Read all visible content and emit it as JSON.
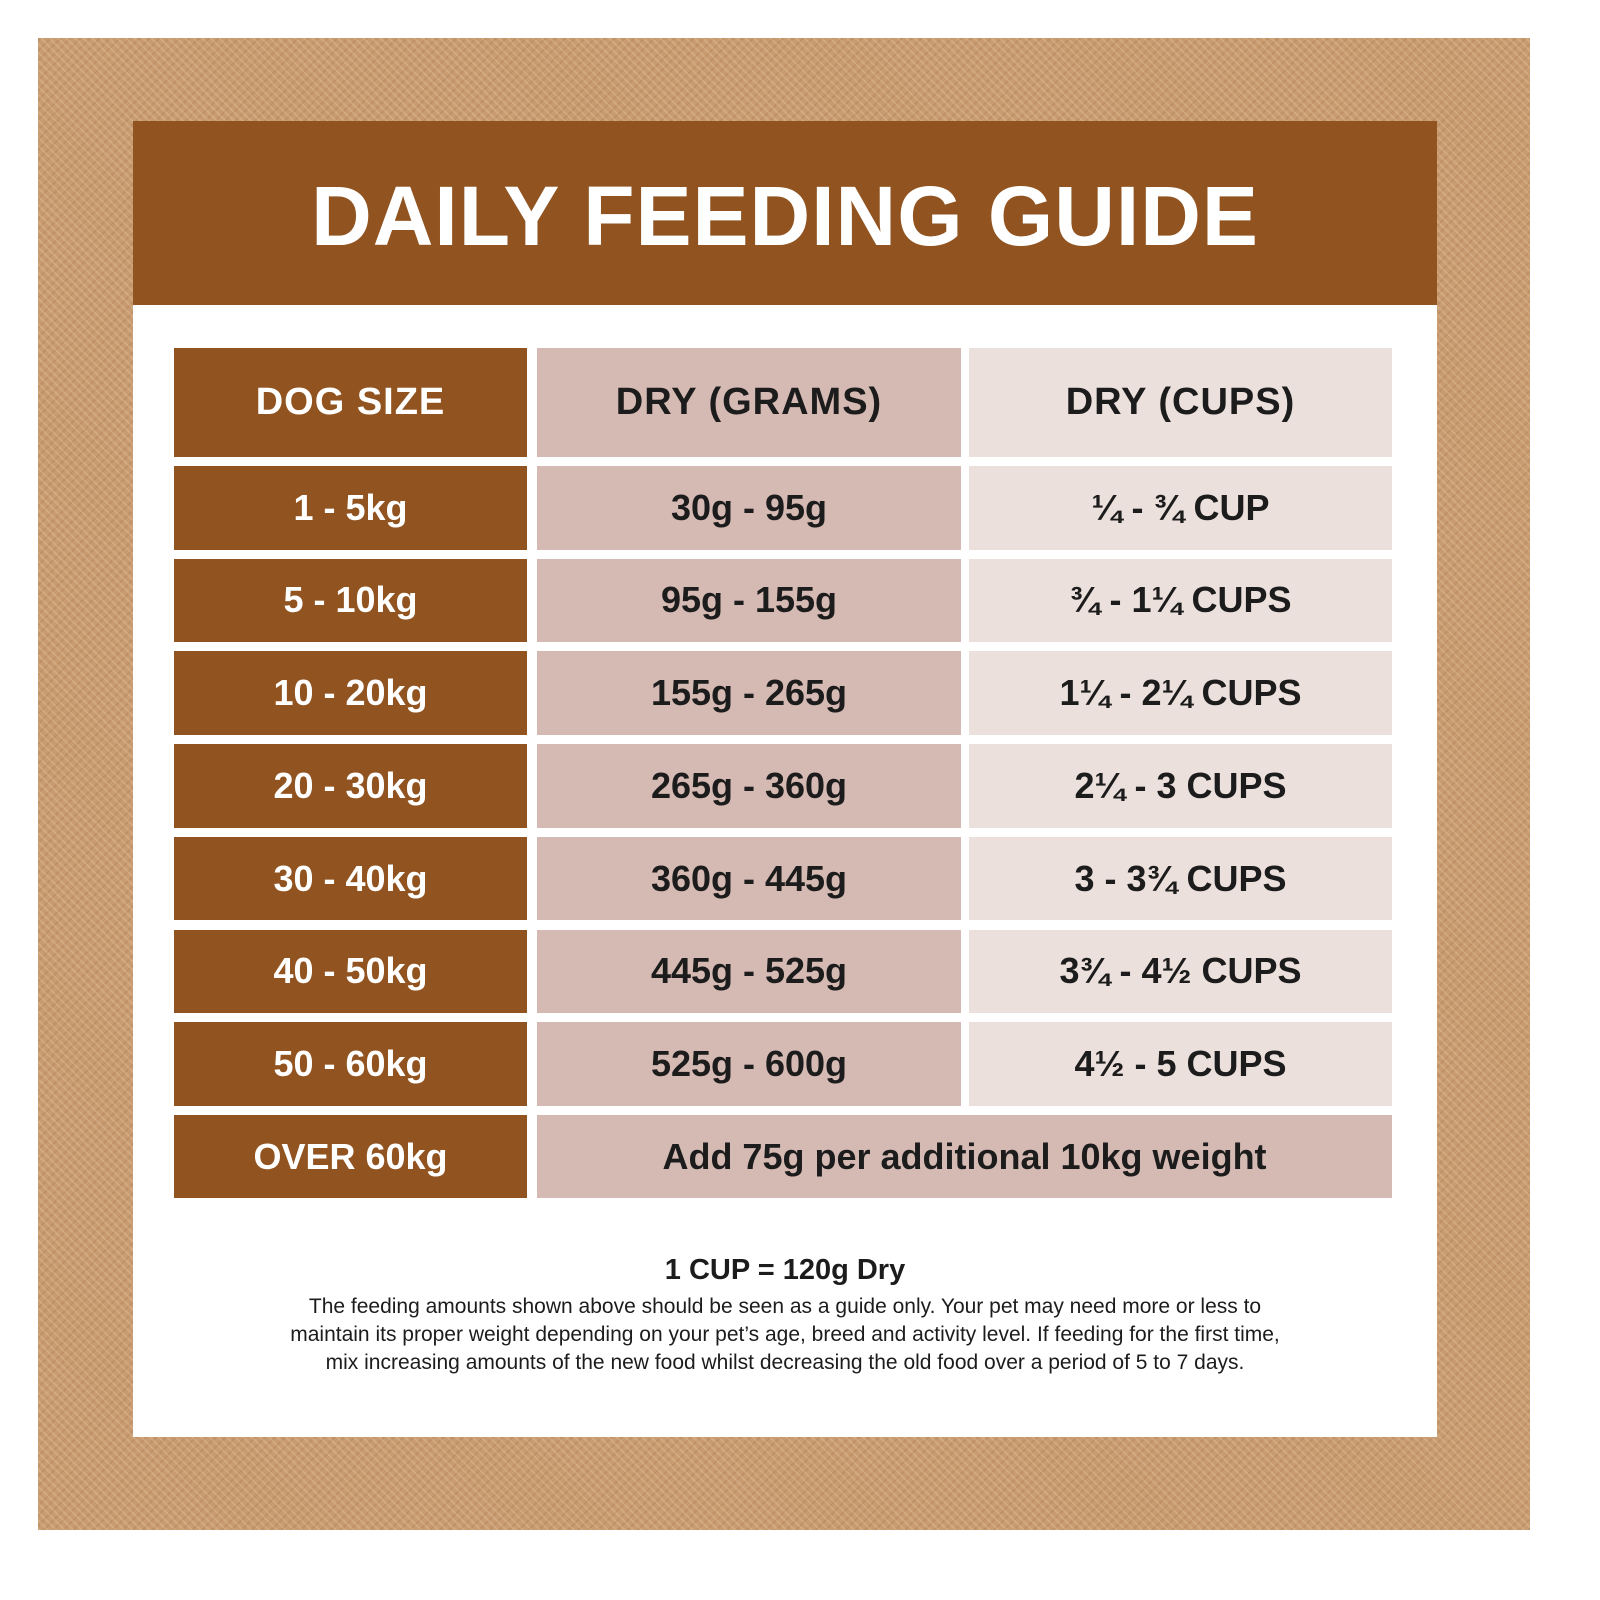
{
  "header": {
    "title": "DAILY FEEDING GUIDE"
  },
  "table": {
    "columns": [
      "DOG SIZE",
      "DRY (GRAMS)",
      "DRY (CUPS)"
    ],
    "rows": [
      [
        "1 - 5kg",
        "30g - 95g",
        "¼ - ¾ CUP"
      ],
      [
        "5 - 10kg",
        "95g - 155g",
        "¾ - 1¼ CUPS"
      ],
      [
        "10 - 20kg",
        "155g - 265g",
        "1¼ - 2¼ CUPS"
      ],
      [
        "20 - 30kg",
        "265g - 360g",
        "2¼ - 3 CUPS"
      ],
      [
        "30 - 40kg",
        "360g - 445g",
        "3 - 3¾ CUPS"
      ],
      [
        "40 - 50kg",
        "445g - 525g",
        "3¾ - 4½ CUPS"
      ],
      [
        "50 - 60kg",
        "525g - 600g",
        "4½ - 5 CUPS"
      ],
      [
        "OVER 60kg",
        "Add 75g per additional 10kg weight"
      ]
    ]
  },
  "footer": {
    "conversion": "1 CUP = 120g Dry",
    "note": [
      "The feeding amounts shown above should be seen as a guide only. Your pet may need more or less to",
      "maintain its proper weight depending on your pet’s age, breed and activity level. If feeding for the first time,",
      "mix increasing amounts of the new food whilst decreasing the old food over a period of 5 to 7 days."
    ]
  }
}
